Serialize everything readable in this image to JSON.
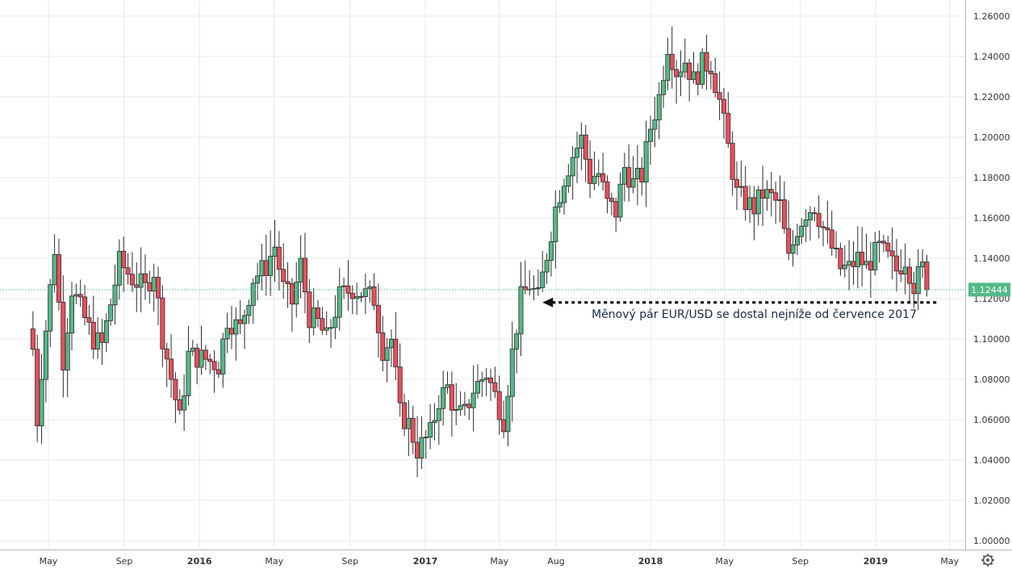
{
  "chart_data": {
    "type": "candlestick",
    "symbol": "EURUSD",
    "interval": "weekly",
    "title": "",
    "ylim": [
      0.995,
      1.265
    ],
    "y_ticks": [
      "1.00000",
      "1.02000",
      "1.04000",
      "1.06000",
      "1.08000",
      "1.10000",
      "1.12000",
      "1.14000",
      "1.16000",
      "1.18000",
      "1.20000",
      "1.22000",
      "1.24000",
      "1.26000"
    ],
    "x_ticks": [
      "May",
      "Sep",
      "2016",
      "May",
      "Sep",
      "2017",
      "May",
      "Aug",
      "2018",
      "May",
      "Sep",
      "2019",
      "May"
    ],
    "x_tick_dates": [
      "2015-05-01",
      "2015-09-01",
      "2016-01-01",
      "2016-05-01",
      "2016-09-01",
      "2017-01-01",
      "2017-05-01",
      "2017-08-01",
      "2018-01-01",
      "2018-05-01",
      "2018-09-01",
      "2019-01-01",
      "2019-05-01"
    ],
    "last_price": 1.12444,
    "last_price_label": "1.12444",
    "annotation": "Měnový pár EUR/USD se dostal nejníže od července 2017",
    "annotation_date": "2017-07-10",
    "annotation_value": 1.1185,
    "colors": {
      "up": "#53b987",
      "down": "#eb4d5c",
      "last_price_label_bg": "#53b987",
      "grid": "#e6e6e6"
    },
    "anchors": [
      [
        "2015-04-06",
        1.095
      ],
      [
        "2015-04-13",
        1.06
      ],
      [
        "2015-04-20",
        1.085
      ],
      [
        "2015-05-11",
        1.145
      ],
      [
        "2015-05-25",
        1.09
      ],
      [
        "2015-06-08",
        1.125
      ],
      [
        "2015-06-22",
        1.115
      ],
      [
        "2015-07-13",
        1.1
      ],
      [
        "2015-07-27",
        1.097
      ],
      [
        "2015-08-24",
        1.138
      ],
      [
        "2015-09-14",
        1.13
      ],
      [
        "2015-10-05",
        1.125
      ],
      [
        "2015-10-19",
        1.134
      ],
      [
        "2015-11-02",
        1.101
      ],
      [
        "2015-11-30",
        1.06
      ],
      [
        "2015-12-14",
        1.092
      ],
      [
        "2016-01-11",
        1.09
      ],
      [
        "2016-02-01",
        1.087
      ],
      [
        "2016-02-15",
        1.11
      ],
      [
        "2016-03-07",
        1.105
      ],
      [
        "2016-03-28",
        1.13
      ],
      [
        "2016-04-18",
        1.136
      ],
      [
        "2016-05-02",
        1.146
      ],
      [
        "2016-05-16",
        1.125
      ],
      [
        "2016-05-30",
        1.118
      ],
      [
        "2016-06-13",
        1.137
      ],
      [
        "2016-06-27",
        1.111
      ],
      [
        "2016-07-11",
        1.108
      ],
      [
        "2016-07-25",
        1.1
      ],
      [
        "2016-08-15",
        1.121
      ],
      [
        "2016-09-05",
        1.125
      ],
      [
        "2016-09-26",
        1.122
      ],
      [
        "2016-10-10",
        1.12
      ],
      [
        "2016-10-24",
        1.095
      ],
      [
        "2016-11-07",
        1.1
      ],
      [
        "2016-11-21",
        1.063
      ],
      [
        "2016-12-05",
        1.058
      ],
      [
        "2016-12-19",
        1.045
      ],
      [
        "2017-01-09",
        1.053
      ],
      [
        "2017-01-23",
        1.07
      ],
      [
        "2017-02-06",
        1.076
      ],
      [
        "2017-02-20",
        1.062
      ],
      [
        "2017-03-06",
        1.063
      ],
      [
        "2017-03-20",
        1.075
      ],
      [
        "2017-04-10",
        1.083
      ],
      [
        "2017-04-24",
        1.072
      ],
      [
        "2017-05-08",
        1.06
      ],
      [
        "2017-05-22",
        1.093
      ],
      [
        "2017-06-05",
        1.12
      ],
      [
        "2017-06-19",
        1.127
      ],
      [
        "2017-07-03",
        1.12
      ],
      [
        "2017-07-17",
        1.142
      ],
      [
        "2017-07-31",
        1.165
      ],
      [
        "2017-08-14",
        1.18
      ],
      [
        "2017-08-28",
        1.191
      ],
      [
        "2017-09-11",
        1.199
      ],
      [
        "2017-09-25",
        1.18
      ],
      [
        "2017-10-09",
        1.182
      ],
      [
        "2017-10-23",
        1.167
      ],
      [
        "2017-11-06",
        1.163
      ],
      [
        "2017-11-20",
        1.185
      ],
      [
        "2017-12-04",
        1.177
      ],
      [
        "2017-12-18",
        1.181
      ],
      [
        "2018-01-01",
        1.205
      ],
      [
        "2018-01-15",
        1.22
      ],
      [
        "2018-01-29",
        1.246
      ],
      [
        "2018-02-12",
        1.233
      ],
      [
        "2018-02-26",
        1.238
      ],
      [
        "2018-03-12",
        1.228
      ],
      [
        "2018-03-26",
        1.236
      ],
      [
        "2018-04-09",
        1.236
      ],
      [
        "2018-04-23",
        1.218
      ],
      [
        "2018-05-07",
        1.195
      ],
      [
        "2018-05-21",
        1.172
      ],
      [
        "2018-06-04",
        1.168
      ],
      [
        "2018-06-18",
        1.165
      ],
      [
        "2018-07-02",
        1.172
      ],
      [
        "2018-07-16",
        1.17
      ],
      [
        "2018-07-30",
        1.166
      ],
      [
        "2018-08-13",
        1.139
      ],
      [
        "2018-08-27",
        1.155
      ],
      [
        "2018-09-10",
        1.163
      ],
      [
        "2018-09-24",
        1.166
      ],
      [
        "2018-10-08",
        1.155
      ],
      [
        "2018-10-22",
        1.145
      ],
      [
        "2018-11-05",
        1.135
      ],
      [
        "2018-11-19",
        1.135
      ],
      [
        "2018-12-03",
        1.14
      ],
      [
        "2018-12-17",
        1.136
      ],
      [
        "2019-01-07",
        1.145
      ],
      [
        "2019-01-21",
        1.14
      ],
      [
        "2019-02-04",
        1.134
      ],
      [
        "2019-02-18",
        1.14
      ],
      [
        "2019-03-04",
        1.127
      ],
      [
        "2019-03-18",
        1.135
      ],
      [
        "2019-03-25",
        1.124
      ]
    ]
  },
  "settings_icon": "gear-icon"
}
